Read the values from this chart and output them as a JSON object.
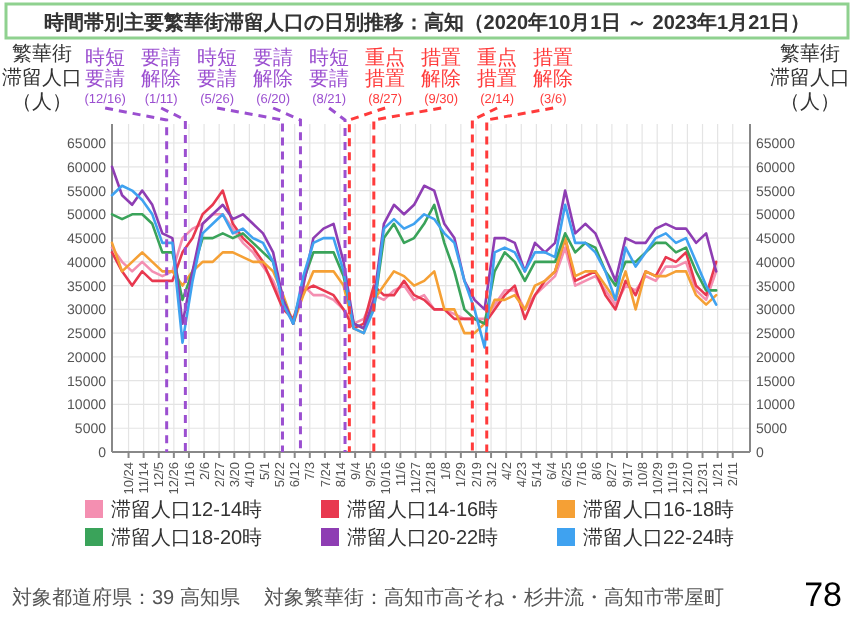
{
  "chart_data": {
    "type": "line",
    "title": "時間帯別主要繁華街滞留人口の日別推移：高知（2020年10月1日 ～ 2023年1月21日）",
    "ylabel": "繁華街滞留人口（人）",
    "y2label": "繁華街滞留人口（人）",
    "x": [
      "2020-10-01",
      "2020-10-15",
      "2020-10-29",
      "2020-11-12",
      "2020-11-26",
      "2020-12-10",
      "2020-12-24",
      "2021-01-07",
      "2021-01-21",
      "2021-02-04",
      "2021-02-18",
      "2021-03-04",
      "2021-03-18",
      "2021-04-01",
      "2021-04-15",
      "2021-04-29",
      "2021-05-13",
      "2021-05-27",
      "2021-06-10",
      "2021-06-24",
      "2021-07-08",
      "2021-07-22",
      "2021-08-05",
      "2021-08-19",
      "2021-09-02",
      "2021-09-16",
      "2021-09-30",
      "2021-10-14",
      "2021-10-28",
      "2021-11-11",
      "2021-11-25",
      "2021-12-09",
      "2021-12-23",
      "2022-01-06",
      "2022-01-20",
      "2022-02-03",
      "2022-02-17",
      "2022-03-03",
      "2022-03-17",
      "2022-03-31",
      "2022-04-14",
      "2022-04-28",
      "2022-05-12",
      "2022-05-26",
      "2022-06-09",
      "2022-06-23",
      "2022-07-07",
      "2022-07-21",
      "2022-08-04",
      "2022-08-18",
      "2022-09-01",
      "2022-09-15",
      "2022-09-29",
      "2022-10-13",
      "2022-10-27",
      "2022-11-10",
      "2022-11-24",
      "2022-12-08",
      "2022-12-22",
      "2023-01-05",
      "2023-01-19"
    ],
    "xlim": [
      "2020-10-01",
      "2023-03-07"
    ],
    "xticks": [
      {
        "value": "2020-10-24",
        "label": "10/24"
      },
      {
        "value": "2020-11-14",
        "label": "11/14"
      },
      {
        "value": "2020-12-05",
        "label": "12/5"
      },
      {
        "value": "2020-12-26",
        "label": "12/26"
      },
      {
        "value": "2021-01-16",
        "label": "1/16"
      },
      {
        "value": "2021-02-06",
        "label": "2/6"
      },
      {
        "value": "2021-02-27",
        "label": "2/27"
      },
      {
        "value": "2021-03-20",
        "label": "3/20"
      },
      {
        "value": "2021-04-10",
        "label": "4/10"
      },
      {
        "value": "2021-05-01",
        "label": "5/1"
      },
      {
        "value": "2021-05-22",
        "label": "5/22"
      },
      {
        "value": "2021-06-12",
        "label": "6/12"
      },
      {
        "value": "2021-07-03",
        "label": "7/3"
      },
      {
        "value": "2021-07-24",
        "label": "7/24"
      },
      {
        "value": "2021-08-14",
        "label": "8/14"
      },
      {
        "value": "2021-09-04",
        "label": "9/4"
      },
      {
        "value": "2021-09-25",
        "label": "9/25"
      },
      {
        "value": "2021-10-16",
        "label": "10/16"
      },
      {
        "value": "2021-11-06",
        "label": "11/6"
      },
      {
        "value": "2021-11-27",
        "label": "11/27"
      },
      {
        "value": "2021-12-18",
        "label": "12/18"
      },
      {
        "value": "2022-01-08",
        "label": "1/8"
      },
      {
        "value": "2022-01-29",
        "label": "1/29"
      },
      {
        "value": "2022-02-19",
        "label": "2/19"
      },
      {
        "value": "2022-03-12",
        "label": "3/12"
      },
      {
        "value": "2022-04-02",
        "label": "4/2"
      },
      {
        "value": "2022-04-23",
        "label": "4/23"
      },
      {
        "value": "2022-05-14",
        "label": "5/14"
      },
      {
        "value": "2022-06-04",
        "label": "6/4"
      },
      {
        "value": "2022-06-25",
        "label": "6/25"
      },
      {
        "value": "2022-07-16",
        "label": "7/16"
      },
      {
        "value": "2022-08-06",
        "label": "8/6"
      },
      {
        "value": "2022-08-27",
        "label": "8/27"
      },
      {
        "value": "2022-09-17",
        "label": "9/17"
      },
      {
        "value": "2022-10-08",
        "label": "10/8"
      },
      {
        "value": "2022-10-29",
        "label": "10/29"
      },
      {
        "value": "2022-11-19",
        "label": "11/19"
      },
      {
        "value": "2022-12-10",
        "label": "12/10"
      },
      {
        "value": "2022-12-31",
        "label": "12/31"
      },
      {
        "value": "2023-01-21",
        "label": "1/21"
      },
      {
        "value": "2023-02-11",
        "label": "2/11"
      }
    ],
    "ylim": [
      0,
      69000
    ],
    "yticks": [
      0,
      5000,
      10000,
      15000,
      20000,
      25000,
      30000,
      35000,
      40000,
      45000,
      50000,
      55000,
      60000,
      65000
    ],
    "y2lim": [
      0,
      69000
    ],
    "y2ticks": [
      0,
      5000,
      10000,
      15000,
      20000,
      25000,
      30000,
      35000,
      40000,
      45000,
      50000,
      55000,
      60000,
      65000
    ],
    "grid": true,
    "legend": "bottom",
    "series": [
      {
        "name": "滞留人口12-14時",
        "color": "#f48fb1",
        "values": [
          43000,
          40000,
          38000,
          40000,
          38000,
          37000,
          38000,
          45000,
          47000,
          48000,
          50000,
          50000,
          47000,
          44000,
          42000,
          39000,
          36000,
          31000,
          28000,
          35000,
          33000,
          33000,
          32000,
          30000,
          27000,
          28000,
          33000,
          32000,
          34000,
          35000,
          32000,
          33000,
          30000,
          30000,
          29000,
          28000,
          28000,
          28000,
          31000,
          34000,
          34000,
          30000,
          33000,
          35000,
          37000,
          43000,
          35000,
          36000,
          37000,
          34000,
          31000,
          35000,
          34000,
          37000,
          36000,
          39000,
          39000,
          40000,
          34000,
          32000,
          38000
        ]
      },
      {
        "name": "滞留人口14-16時",
        "color": "#e8384f",
        "values": [
          42000,
          38000,
          35000,
          38000,
          36000,
          36000,
          36000,
          42000,
          45000,
          50000,
          52000,
          55000,
          48000,
          45000,
          43000,
          40000,
          35000,
          30000,
          28000,
          34000,
          35000,
          34000,
          33000,
          30000,
          26000,
          27000,
          35000,
          33000,
          33000,
          36000,
          33000,
          32000,
          30000,
          30000,
          28000,
          28000,
          28000,
          27000,
          30000,
          33000,
          35000,
          28000,
          33000,
          36000,
          38000,
          45000,
          36000,
          37000,
          38000,
          33000,
          30000,
          36000,
          33000,
          38000,
          37000,
          41000,
          40000,
          42000,
          35000,
          33000,
          40000
        ]
      },
      {
        "name": "滞留人口16-18時",
        "color": "#f5a035",
        "values": [
          44000,
          38000,
          40000,
          42000,
          40000,
          38000,
          38000,
          35000,
          38000,
          40000,
          40000,
          42000,
          42000,
          41000,
          40000,
          40000,
          38000,
          33000,
          27000,
          33000,
          38000,
          38000,
          38000,
          35000,
          26000,
          25000,
          32000,
          35000,
          38000,
          37000,
          35000,
          36000,
          38000,
          30000,
          30000,
          25000,
          25000,
          27000,
          32000,
          32000,
          33000,
          30000,
          35000,
          36000,
          38000,
          45000,
          37000,
          38000,
          38000,
          35000,
          32000,
          38000,
          30000,
          38000,
          37000,
          37000,
          38000,
          38000,
          33000,
          31000,
          33000
        ]
      },
      {
        "name": "滞留人口18-20時",
        "color": "#3aa35a",
        "values": [
          50000,
          49000,
          50000,
          50000,
          48000,
          42000,
          42000,
          32000,
          38000,
          45000,
          45000,
          46000,
          45000,
          46000,
          44000,
          42000,
          40000,
          32000,
          27000,
          36000,
          42000,
          42000,
          42000,
          37000,
          27000,
          26000,
          30000,
          45000,
          48000,
          44000,
          45000,
          48000,
          52000,
          44000,
          38000,
          30000,
          28000,
          27000,
          38000,
          42000,
          40000,
          36000,
          40000,
          40000,
          40000,
          46000,
          42000,
          44000,
          43000,
          38000,
          35000,
          40000,
          40000,
          42000,
          44000,
          44000,
          42000,
          43000,
          38000,
          34000,
          34000
        ]
      },
      {
        "name": "滞留人口20-22時",
        "color": "#8e3db3",
        "values": [
          60000,
          54000,
          52000,
          55000,
          52000,
          46000,
          45000,
          27000,
          38000,
          48000,
          50000,
          52000,
          49000,
          50000,
          48000,
          46000,
          42000,
          32000,
          27000,
          35000,
          45000,
          47000,
          48000,
          40000,
          27000,
          26000,
          32000,
          48000,
          52000,
          50000,
          52000,
          56000,
          55000,
          48000,
          45000,
          36000,
          32000,
          30000,
          45000,
          45000,
          44000,
          38000,
          44000,
          42000,
          44000,
          55000,
          46000,
          48000,
          46000,
          41000,
          36000,
          45000,
          44000,
          44000,
          47000,
          48000,
          47000,
          47000,
          44000,
          46000,
          38000
        ]
      },
      {
        "name": "滞留人口22-24時",
        "color": "#3fa2f0",
        "values": [
          54000,
          56000,
          55000,
          53000,
          50000,
          44000,
          44000,
          23000,
          36000,
          46000,
          48000,
          50000,
          46000,
          47000,
          45000,
          44000,
          40000,
          31000,
          27000,
          37000,
          44000,
          45000,
          45000,
          38000,
          26000,
          25000,
          30000,
          47000,
          49000,
          47000,
          48000,
          50000,
          49000,
          46000,
          44000,
          36000,
          30000,
          22000,
          42000,
          43000,
          42000,
          38000,
          42000,
          42000,
          41000,
          52000,
          44000,
          44000,
          42000,
          38000,
          32000,
          43000,
          39000,
          42000,
          45000,
          46000,
          44000,
          45000,
          40000,
          35000,
          31000
        ]
      }
    ],
    "ref_lines": [
      {
        "axis": "x",
        "value": "2020-12-16",
        "label": "時短要請(12/16)",
        "color": "#9b4fd0",
        "line_style": "dashed"
      },
      {
        "axis": "x",
        "value": "2021-01-11",
        "label": "要請解除(1/11)",
        "color": "#9b4fd0",
        "line_style": "dashed"
      },
      {
        "axis": "x",
        "value": "2021-05-26",
        "label": "時短要請(5/26)",
        "color": "#9b4fd0",
        "line_style": "dashed"
      },
      {
        "axis": "x",
        "value": "2021-06-20",
        "label": "要請解除(6/20)",
        "color": "#9b4fd0",
        "line_style": "dashed"
      },
      {
        "axis": "x",
        "value": "2021-08-21",
        "label": "時短要請(8/21)",
        "color": "#9b4fd0",
        "line_style": "dashed"
      },
      {
        "axis": "x",
        "value": "2021-08-27",
        "label": "重点措置(8/27)",
        "color": "#ff3b3b",
        "line_style": "dashed"
      },
      {
        "axis": "x",
        "value": "2021-09-30",
        "label": "措置解除(9/30)",
        "color": "#ff3b3b",
        "line_style": "dashed"
      },
      {
        "axis": "x",
        "value": "2022-02-14",
        "label": "重点措置(2/14)",
        "color": "#ff3b3b",
        "line_style": "dashed"
      },
      {
        "axis": "x",
        "value": "2022-03-06",
        "label": "措置解除(3/6)",
        "color": "#ff3b3b",
        "line_style": "dashed"
      }
    ],
    "annotations": [
      "対象都道府県：39 高知県",
      "対象繁華街：高知市高そね・杉井流・高知市帯屋町",
      "78"
    ]
  }
}
